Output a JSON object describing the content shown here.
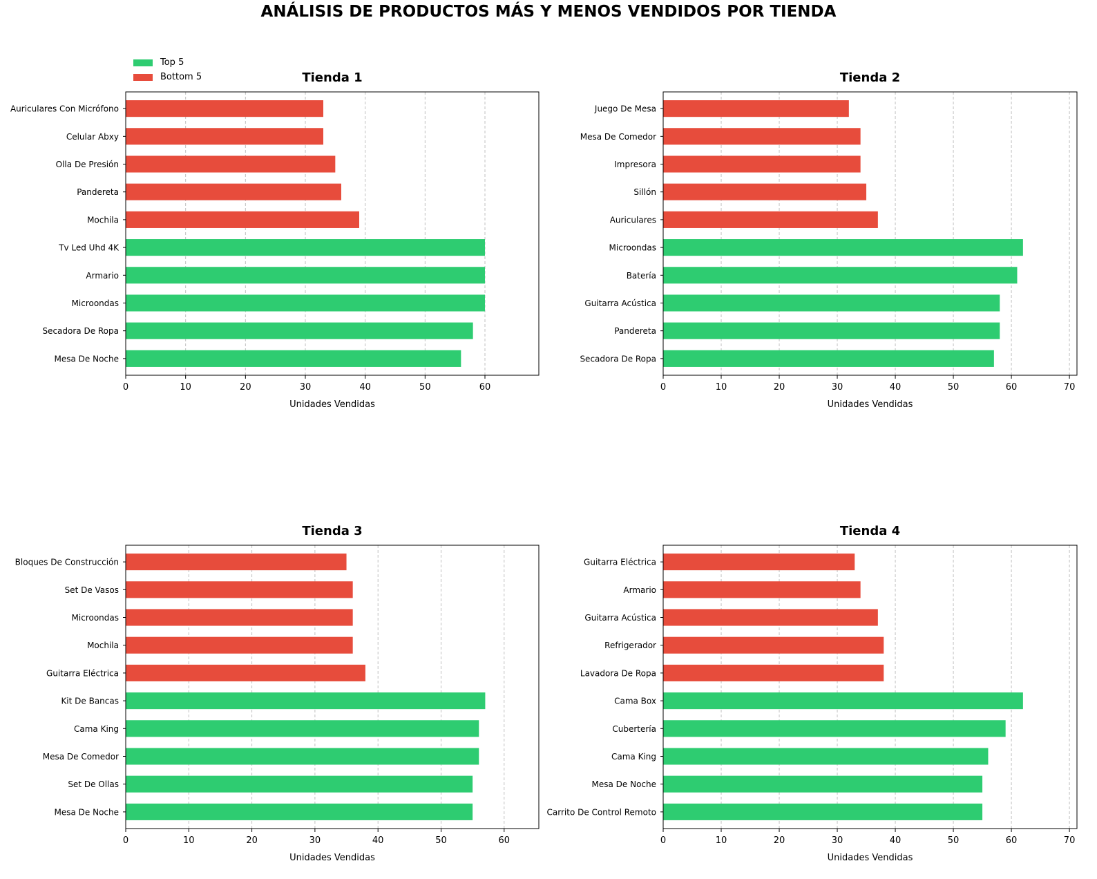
{
  "title": "ANÁLISIS DE PRODUCTOS MÁS Y MENOS VENDIDOS POR TIENDA",
  "legend": {
    "placement": "top-left",
    "items": [
      {
        "label": "Top 5",
        "color": "#2ecc71"
      },
      {
        "label": "Bottom 5",
        "color": "#e74c3c"
      }
    ]
  },
  "colors": {
    "top": "#2ecc71",
    "bottom": "#e74c3c"
  },
  "chart_data": [
    {
      "type": "bar",
      "orientation": "horizontal",
      "title": "Tienda 1",
      "xlabel": "Unidades Vendidas",
      "xlim": [
        0,
        69
      ],
      "xticks": [
        0,
        10,
        20,
        30,
        40,
        50,
        60
      ],
      "grid": "x-dashed",
      "categories": [
        "Auriculares Con Micrófono",
        "Celular Abxy",
        "Olla De Presión",
        "Pandereta",
        "Mochila",
        "Tv Led Uhd 4K",
        "Armario",
        "Microondas",
        "Secadora De Ropa",
        "Mesa De Noche"
      ],
      "values": [
        33,
        33,
        35,
        36,
        39,
        60,
        60,
        60,
        58,
        56
      ],
      "groups": [
        "bottom",
        "bottom",
        "bottom",
        "bottom",
        "bottom",
        "top",
        "top",
        "top",
        "top",
        "top"
      ]
    },
    {
      "type": "bar",
      "orientation": "horizontal",
      "title": "Tienda 2",
      "xlabel": "Unidades Vendidas",
      "xlim": [
        0,
        71.3
      ],
      "xticks": [
        0,
        10,
        20,
        30,
        40,
        50,
        60,
        70
      ],
      "grid": "x-dashed",
      "categories": [
        "Juego De Mesa",
        "Mesa De Comedor",
        "Impresora",
        "Sillón",
        "Auriculares",
        "Microondas",
        "Batería",
        "Guitarra Acústica",
        "Pandereta",
        "Secadora De Ropa"
      ],
      "values": [
        32,
        34,
        34,
        35,
        37,
        62,
        61,
        58,
        58,
        57
      ],
      "groups": [
        "bottom",
        "bottom",
        "bottom",
        "bottom",
        "bottom",
        "top",
        "top",
        "top",
        "top",
        "top"
      ]
    },
    {
      "type": "bar",
      "orientation": "horizontal",
      "title": "Tienda 3",
      "xlabel": "Unidades Vendidas",
      "xlim": [
        0,
        65.5
      ],
      "xticks": [
        0,
        10,
        20,
        30,
        40,
        50,
        60
      ],
      "grid": "x-dashed",
      "categories": [
        "Bloques De Construcción",
        "Set De Vasos",
        "Microondas",
        "Mochila",
        "Guitarra Eléctrica",
        "Kit De Bancas",
        "Cama King",
        "Mesa De Comedor",
        "Set De Ollas",
        "Mesa De Noche"
      ],
      "values": [
        35,
        36,
        36,
        36,
        38,
        57,
        56,
        56,
        55,
        55
      ],
      "groups": [
        "bottom",
        "bottom",
        "bottom",
        "bottom",
        "bottom",
        "top",
        "top",
        "top",
        "top",
        "top"
      ]
    },
    {
      "type": "bar",
      "orientation": "horizontal",
      "title": "Tienda 4",
      "xlabel": "Unidades Vendidas",
      "xlim": [
        0,
        71.3
      ],
      "xticks": [
        0,
        10,
        20,
        30,
        40,
        50,
        60,
        70
      ],
      "grid": "x-dashed",
      "categories": [
        "Guitarra Eléctrica",
        "Armario",
        "Guitarra Acústica",
        "Refrigerador",
        "Lavadora De Ropa",
        "Cama Box",
        "Cubertería",
        "Cama King",
        "Mesa De Noche",
        "Carrito De Control Remoto"
      ],
      "values": [
        33,
        34,
        37,
        38,
        38,
        62,
        59,
        56,
        55,
        55
      ],
      "groups": [
        "bottom",
        "bottom",
        "bottom",
        "bottom",
        "bottom",
        "top",
        "top",
        "top",
        "top",
        "top"
      ]
    }
  ]
}
